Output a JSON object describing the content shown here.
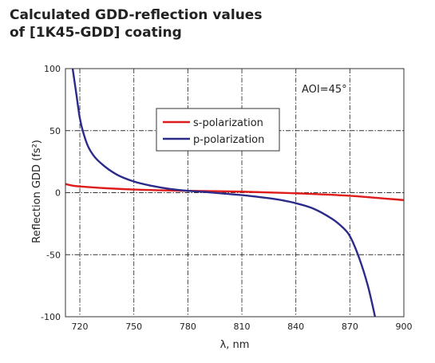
{
  "chart_data": {
    "type": "line",
    "title_line1": "Calculated GDD-reflection values",
    "title_line2": "of [1K45-GDD] coating",
    "xlabel": "λ, nm",
    "ylabel": "Reflection GDD (fs²)",
    "xlim": [
      712,
      900
    ],
    "ylim": [
      -100,
      100
    ],
    "xticks": [
      "720",
      "750",
      "780",
      "810",
      "840",
      "870",
      "900"
    ],
    "xtick_values": [
      720,
      750,
      780,
      810,
      840,
      870,
      900
    ],
    "yticks": [
      "100",
      "50",
      "0",
      "-50",
      "-100"
    ],
    "ytick_values": [
      100,
      50,
      0,
      -50,
      -100
    ],
    "annotation": "AOI=45°",
    "grid": true,
    "legend_position": "upper-center",
    "series": [
      {
        "name": "s-polarization",
        "color": "#e01b1b",
        "x": [
          712,
          720,
          750,
          780,
          810,
          840,
          870,
          900
        ],
        "y": [
          7,
          5,
          2.5,
          1.5,
          0.8,
          -0.5,
          -2.5,
          -6
        ]
      },
      {
        "name": "p-polarization",
        "color": "#2b2b8a",
        "x": [
          716,
          718,
          720,
          722,
          725,
          730,
          740,
          750,
          760,
          770,
          780,
          790,
          800,
          810,
          820,
          830,
          840,
          850,
          860,
          866,
          870,
          875,
          880,
          884
        ],
        "y": [
          100,
          80,
          60,
          48,
          36,
          26,
          15,
          9,
          5.5,
          3,
          1.5,
          0.5,
          -0.8,
          -2,
          -3.6,
          -5.5,
          -8.5,
          -13,
          -21,
          -28,
          -35,
          -52,
          -75,
          -100
        ]
      }
    ]
  }
}
